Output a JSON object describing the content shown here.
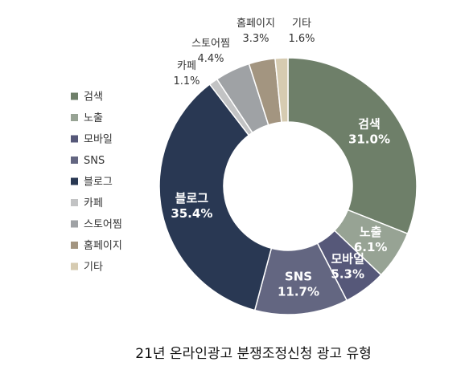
{
  "chart_data": {
    "type": "pie",
    "donut": true,
    "title": "",
    "caption": "21년 온라인광고 분쟁조정신청 광고 유형",
    "legend_position": "left",
    "slices": [
      {
        "name": "검색",
        "value": 31.0,
        "label": "31.0%",
        "color": "#6e7f69"
      },
      {
        "name": "노출",
        "value": 6.1,
        "label": "6.1%",
        "color": "#97a394"
      },
      {
        "name": "모바일",
        "value": 5.3,
        "label": "5.3%",
        "color": "#565879"
      },
      {
        "name": "SNS",
        "value": 11.7,
        "label": "11.7%",
        "color": "#636681"
      },
      {
        "name": "블로그",
        "value": 35.4,
        "label": "35.4%",
        "color": "#293853"
      },
      {
        "name": "카페",
        "value": 1.1,
        "label": "1.1%",
        "color": "#c2c3c4"
      },
      {
        "name": "스토어찜",
        "value": 4.4,
        "label": "4.4%",
        "color": "#9fa2a5"
      },
      {
        "name": "홈페이지",
        "value": 3.3,
        "label": "3.3%",
        "color": "#a39580"
      },
      {
        "name": "기타",
        "value": 1.6,
        "label": "1.6%",
        "color": "#d6cbb1"
      }
    ]
  }
}
